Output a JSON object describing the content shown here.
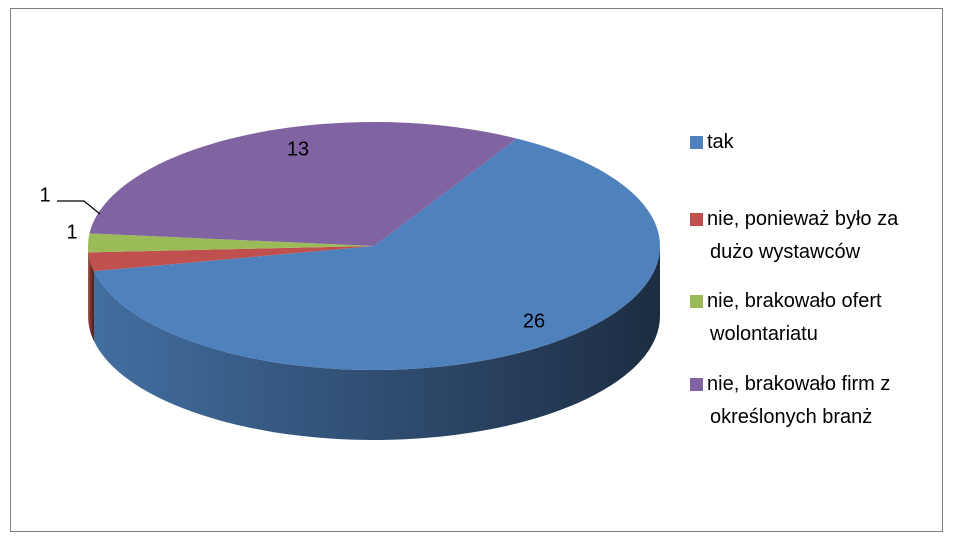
{
  "chart_data": {
    "type": "pie",
    "categories": [
      "tak",
      "nie, ponieważ było za dużo wystawców",
      "nie, brakowało ofert wolontariatu",
      "nie, brakowało firm z określonych branż"
    ],
    "values": [
      26,
      1,
      1,
      13
    ],
    "colors": [
      "#4f81bd",
      "#c0504d",
      "#9bbb59",
      "#8064a2"
    ],
    "legend": "right"
  }
}
